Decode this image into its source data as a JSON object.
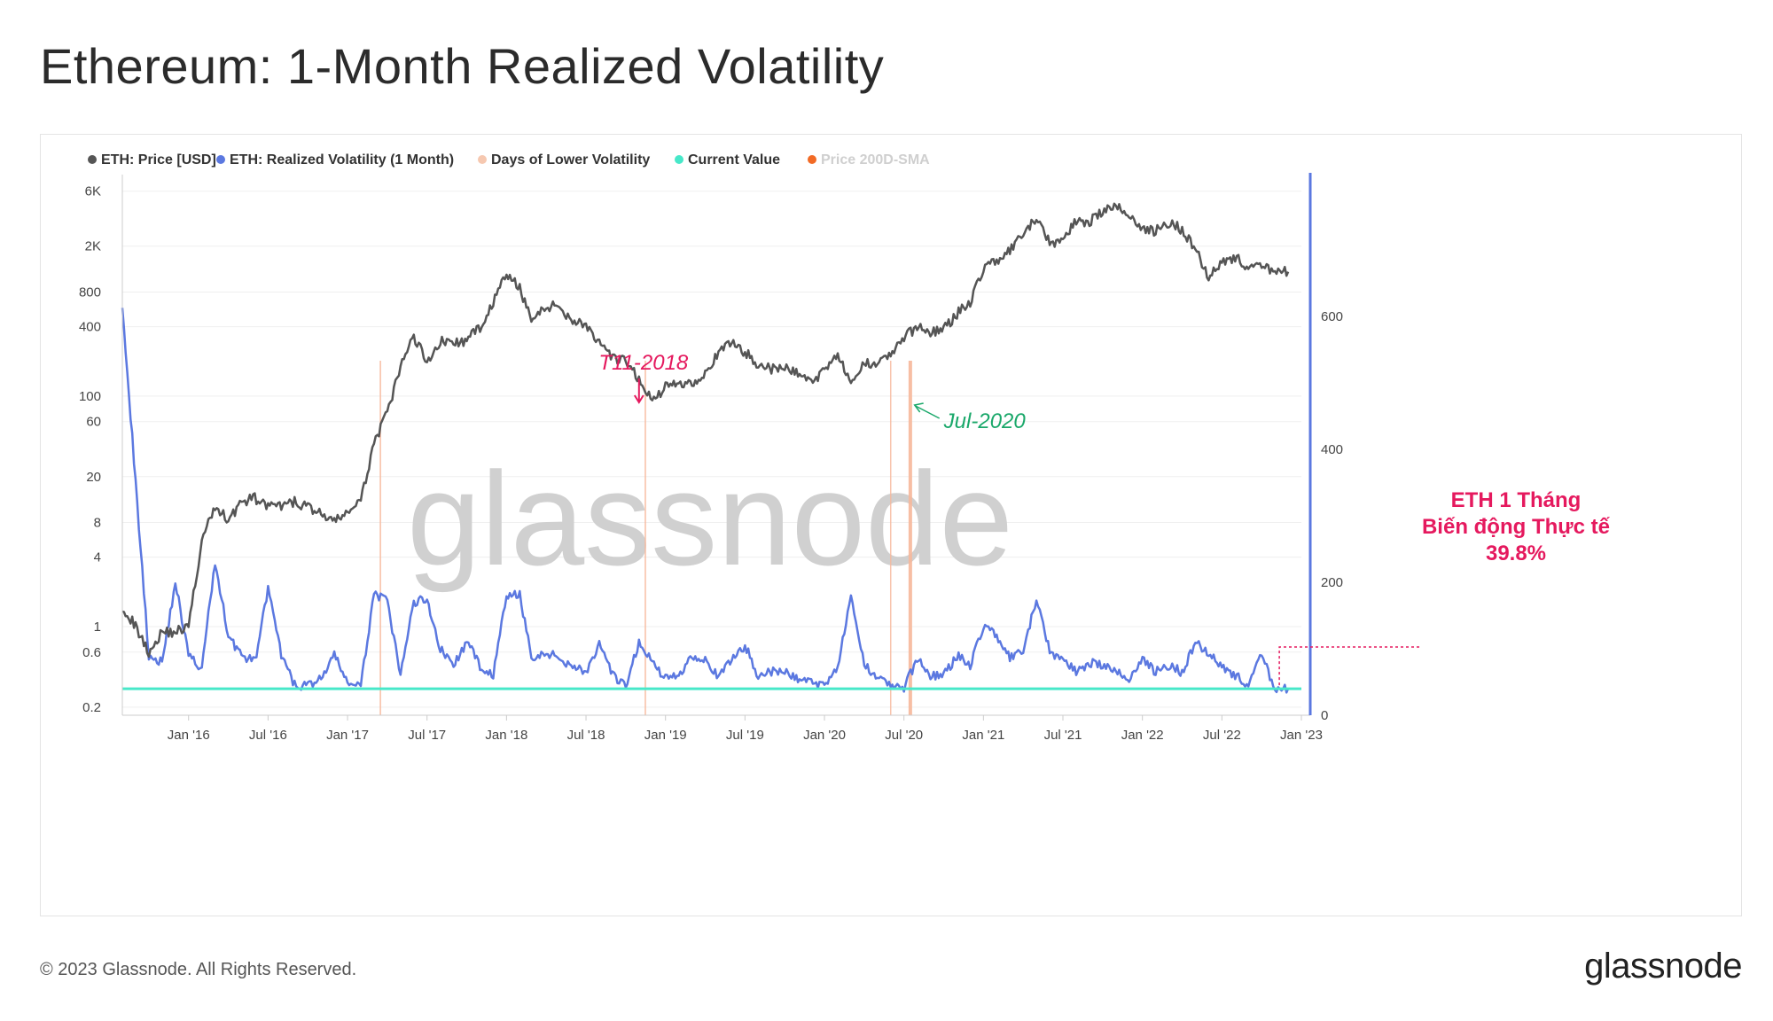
{
  "title": "Ethereum: 1-Month Realized Volatility",
  "footer": "© 2023 Glassnode. All Rights Reserved.",
  "brand": "glassnode",
  "watermark": "glassnode",
  "colors": {
    "price": "#555555",
    "vol": "#5b78e0",
    "lowvol": "#f6b79a",
    "current": "#47e8c9",
    "sma": "#f26a25",
    "annot_red": "#e5195e",
    "annot_green": "#1aa86a"
  },
  "legend": [
    {
      "label": "ETH: Price [USD]",
      "color": "#555555",
      "muted": false
    },
    {
      "label": "ETH: Realized Volatility (1 Month)",
      "color": "#5b78e0",
      "muted": false
    },
    {
      "label": "Days of Lower Volatility",
      "color": "#f6c8b0",
      "muted": false
    },
    {
      "label": "Current Value",
      "color": "#47e8c9",
      "muted": false
    },
    {
      "label": "Price 200D-SMA",
      "color": "#f26a25",
      "muted": true
    }
  ],
  "chart_data": {
    "type": "line",
    "x_ticks": [
      "Jan '16",
      "Jul '16",
      "Jan '17",
      "Jul '17",
      "Jan '18",
      "Jul '18",
      "Jan '19",
      "Jul '19",
      "Jan '20",
      "Jul '20",
      "Jan '21",
      "Jul '21",
      "Jan '22",
      "Jul '22",
      "Jan '23"
    ],
    "y_left_ticks": [
      "6K",
      "2K",
      "800",
      "400",
      "100",
      "60",
      "20",
      "8",
      "4",
      "1",
      "0.6",
      "0.2"
    ],
    "y_left_scale": "log",
    "y_right_ticks": [
      "600",
      "400",
      "200",
      "0"
    ],
    "y_right_range": [
      0,
      800
    ],
    "current_value": 39.8,
    "series": [
      {
        "name": "ETH: Price [USD]",
        "x": [
          "2015-08",
          "2015-09",
          "2015-10",
          "2015-11",
          "2015-12",
          "2016-01",
          "2016-02",
          "2016-03",
          "2016-04",
          "2016-05",
          "2016-06",
          "2016-07",
          "2016-08",
          "2016-09",
          "2016-10",
          "2016-11",
          "2016-12",
          "2017-01",
          "2017-02",
          "2017-03",
          "2017-04",
          "2017-05",
          "2017-06",
          "2017-07",
          "2017-08",
          "2017-09",
          "2017-10",
          "2017-11",
          "2017-12",
          "2018-01",
          "2018-02",
          "2018-03",
          "2018-04",
          "2018-05",
          "2018-06",
          "2018-07",
          "2018-08",
          "2018-09",
          "2018-10",
          "2018-11",
          "2018-12",
          "2019-01",
          "2019-02",
          "2019-03",
          "2019-04",
          "2019-05",
          "2019-06",
          "2019-07",
          "2019-08",
          "2019-09",
          "2019-10",
          "2019-11",
          "2019-12",
          "2020-01",
          "2020-02",
          "2020-03",
          "2020-04",
          "2020-05",
          "2020-06",
          "2020-07",
          "2020-08",
          "2020-09",
          "2020-10",
          "2020-11",
          "2020-12",
          "2021-01",
          "2021-02",
          "2021-03",
          "2021-04",
          "2021-05",
          "2021-06",
          "2021-07",
          "2021-08",
          "2021-09",
          "2021-10",
          "2021-11",
          "2021-12",
          "2022-01",
          "2022-02",
          "2022-03",
          "2022-04",
          "2022-05",
          "2022-06",
          "2022-07",
          "2022-08",
          "2022-09",
          "2022-10",
          "2022-11",
          "2022-12"
        ],
        "values": [
          1.5,
          1.0,
          0.6,
          0.9,
          0.9,
          1.0,
          5.5,
          11,
          8.5,
          12,
          13,
          11,
          11,
          12,
          11,
          9.5,
          8,
          10,
          12,
          40,
          70,
          180,
          330,
          200,
          300,
          290,
          300,
          400,
          650,
          1150,
          850,
          450,
          600,
          600,
          450,
          420,
          280,
          210,
          200,
          140,
          90,
          120,
          130,
          130,
          160,
          230,
          300,
          240,
          190,
          170,
          175,
          160,
          130,
          170,
          240,
          120,
          190,
          200,
          230,
          320,
          400,
          360,
          380,
          520,
          650,
          1300,
          1500,
          1800,
          2500,
          3500,
          2100,
          2300,
          3300,
          3300,
          4000,
          4400,
          3800,
          2800,
          2700,
          3200,
          2800,
          1900,
          1100,
          1500,
          1600,
          1300,
          1300,
          1250,
          1200
        ]
      },
      {
        "name": "ETH: Realized Volatility (1 Month)",
        "x": [
          "2015-08",
          "2015-09",
          "2015-10",
          "2015-11",
          "2015-12",
          "2016-01",
          "2016-02",
          "2016-03",
          "2016-04",
          "2016-05",
          "2016-06",
          "2016-07",
          "2016-08",
          "2016-09",
          "2016-10",
          "2016-11",
          "2016-12",
          "2017-01",
          "2017-02",
          "2017-03",
          "2017-04",
          "2017-05",
          "2017-06",
          "2017-07",
          "2017-08",
          "2017-09",
          "2017-10",
          "2017-11",
          "2017-12",
          "2018-01",
          "2018-02",
          "2018-03",
          "2018-04",
          "2018-05",
          "2018-06",
          "2018-07",
          "2018-08",
          "2018-09",
          "2018-10",
          "2018-11",
          "2018-12",
          "2019-01",
          "2019-02",
          "2019-03",
          "2019-04",
          "2019-05",
          "2019-06",
          "2019-07",
          "2019-08",
          "2019-09",
          "2019-10",
          "2019-11",
          "2019-12",
          "2020-01",
          "2020-02",
          "2020-03",
          "2020-04",
          "2020-05",
          "2020-06",
          "2020-07",
          "2020-08",
          "2020-09",
          "2020-10",
          "2020-11",
          "2020-12",
          "2021-01",
          "2021-02",
          "2021-03",
          "2021-04",
          "2021-05",
          "2021-06",
          "2021-07",
          "2021-08",
          "2021-09",
          "2021-10",
          "2021-11",
          "2021-12",
          "2022-01",
          "2022-02",
          "2022-03",
          "2022-04",
          "2022-05",
          "2022-06",
          "2022-07",
          "2022-08",
          "2022-09",
          "2022-10",
          "2022-11",
          "2022-12"
        ],
        "values": [
          620,
          350,
          90,
          80,
          200,
          90,
          70,
          230,
          120,
          90,
          80,
          190,
          90,
          45,
          45,
          55,
          90,
          50,
          42,
          185,
          170,
          60,
          170,
          175,
          100,
          75,
          110,
          75,
          60,
          180,
          180,
          80,
          95,
          85,
          75,
          65,
          105,
          60,
          42,
          110,
          80,
          55,
          60,
          90,
          85,
          55,
          85,
          105,
          60,
          65,
          65,
          55,
          50,
          45,
          75,
          175,
          75,
          60,
          45,
          40,
          85,
          60,
          60,
          90,
          75,
          135,
          120,
          85,
          95,
          175,
          95,
          85,
          65,
          80,
          75,
          65,
          55,
          85,
          65,
          75,
          65,
          110,
          95,
          75,
          60,
          45,
          90,
          40,
          40
        ]
      }
    ],
    "lower_vol_markers": [
      "2017-03",
      "2018-11",
      "2020-07"
    ],
    "annotations": [
      {
        "text": "T11-2018",
        "date": "2018-11",
        "color": "#e5195e"
      },
      {
        "text": "Jul-2020",
        "date": "2020-07",
        "color": "#1aa86a"
      },
      {
        "lines": [
          "ETH 1 Tháng",
          "Biến động Thực tế",
          "39.8%"
        ],
        "color": "#e5195e"
      }
    ]
  }
}
